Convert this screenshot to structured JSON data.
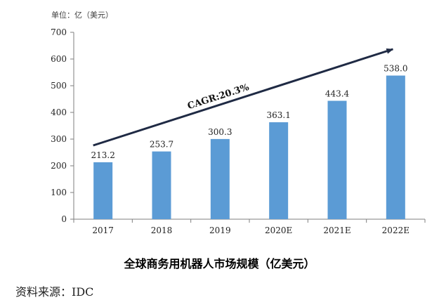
{
  "chart_data": {
    "type": "bar",
    "unit_label": "单位：亿（美元）",
    "categories": [
      "2017",
      "2018",
      "2019",
      "2020E",
      "2021E",
      "2022E"
    ],
    "values": [
      213.2,
      253.7,
      300.3,
      363.1,
      443.4,
      538.0
    ],
    "value_labels": [
      "213.2",
      "253.7",
      "300.3",
      "363.1",
      "443.4",
      "538.0"
    ],
    "y_ticks": [
      "0",
      "100",
      "200",
      "300",
      "400",
      "500",
      "600",
      "700"
    ],
    "ylim": [
      0,
      700
    ],
    "annotation": "CAGR:20.3%",
    "title": "全球商务用机器人市场规模（亿美元）",
    "bar_color": "#5B9BD5",
    "grid": false
  },
  "source": "资料来源：IDC"
}
